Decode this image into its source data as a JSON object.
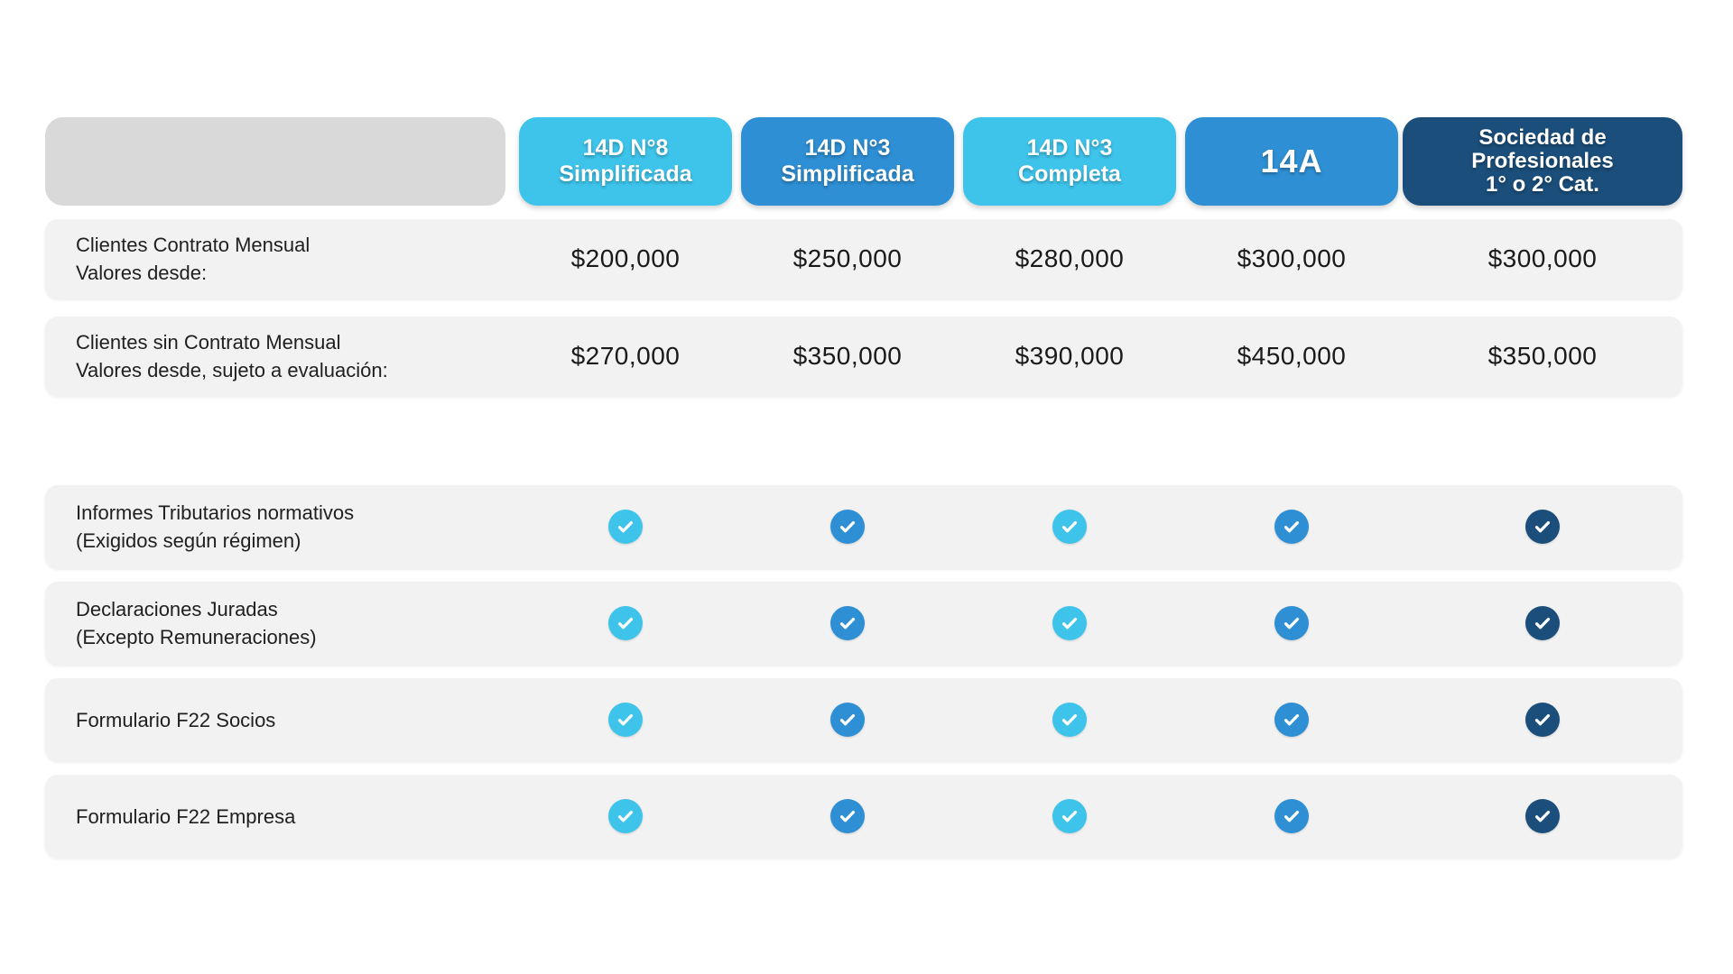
{
  "colors": {
    "cyan": "#3EC4EB",
    "blue": "#2E8FD4",
    "navy": "#1B4E7A",
    "row_background": "#F2F2F2",
    "header_placeholder": "#D9D9D9",
    "text": "#1F1F1F",
    "check_glyph": "#FFFFFF"
  },
  "icons": {
    "check": "check-icon"
  },
  "table": {
    "columns": [
      {
        "id": "14d-n8-simplificada",
        "lines": [
          "14D N°8",
          "Simplificada"
        ],
        "color": "cyan"
      },
      {
        "id": "14d-n3-simplificada",
        "lines": [
          "14D N°3",
          "Simplificada"
        ],
        "color": "blue"
      },
      {
        "id": "14d-n3-completa",
        "lines": [
          "14D N°3",
          "Completa"
        ],
        "color": "cyan"
      },
      {
        "id": "14a",
        "lines": [
          "14A"
        ],
        "color": "blue"
      },
      {
        "id": "sociedad-profesionales",
        "lines": [
          "Sociedad de",
          "Profesionales",
          "1° o 2° Cat."
        ],
        "color": "navy"
      }
    ],
    "price_rows": [
      {
        "label_lines": [
          "Clientes Contrato Mensual",
          "Valores desde:"
        ],
        "values": [
          "$200,000",
          "$250,000",
          "$280,000",
          "$300,000",
          "$300,000"
        ]
      },
      {
        "label_lines": [
          "Clientes sin Contrato Mensual",
          "Valores desde, sujeto a evaluación:"
        ],
        "values": [
          "$270,000",
          "$350,000",
          "$390,000",
          "$450,000",
          "$350,000"
        ]
      }
    ],
    "feature_rows": [
      {
        "label_lines": [
          "Informes Tributarios normativos",
          "(Exigidos según régimen)"
        ],
        "checks": [
          true,
          true,
          true,
          true,
          true
        ]
      },
      {
        "label_lines": [
          "Declaraciones Juradas",
          "(Excepto Remuneraciones)"
        ],
        "checks": [
          true,
          true,
          true,
          true,
          true
        ]
      },
      {
        "label_lines": [
          "Formulario F22 Socios"
        ],
        "checks": [
          true,
          true,
          true,
          true,
          true
        ]
      },
      {
        "label_lines": [
          "Formulario F22 Empresa"
        ],
        "checks": [
          true,
          true,
          true,
          true,
          true
        ]
      }
    ]
  },
  "chart_data": {
    "type": "table",
    "title": "",
    "columns": [
      "14D N°8 Simplificada",
      "14D N°3 Simplificada",
      "14D N°3 Completa",
      "14A",
      "Sociedad de Profesionales 1° o 2° Cat."
    ],
    "rows": [
      {
        "label": "Clientes Contrato Mensual Valores desde:",
        "values": [
          "$200,000",
          "$250,000",
          "$280,000",
          "$300,000",
          "$300,000"
        ]
      },
      {
        "label": "Clientes sin Contrato Mensual Valores desde, sujeto a evaluación:",
        "values": [
          "$270,000",
          "$350,000",
          "$390,000",
          "$450,000",
          "$350,000"
        ]
      },
      {
        "label": "Informes Tributarios normativos (Exigidos según régimen)",
        "values": [
          true,
          true,
          true,
          true,
          true
        ]
      },
      {
        "label": "Declaraciones Juradas (Excepto Remuneraciones)",
        "values": [
          true,
          true,
          true,
          true,
          true
        ]
      },
      {
        "label": "Formulario F22 Socios",
        "values": [
          true,
          true,
          true,
          true,
          true
        ]
      },
      {
        "label": "Formulario F22 Empresa",
        "values": [
          true,
          true,
          true,
          true,
          true
        ]
      }
    ]
  }
}
